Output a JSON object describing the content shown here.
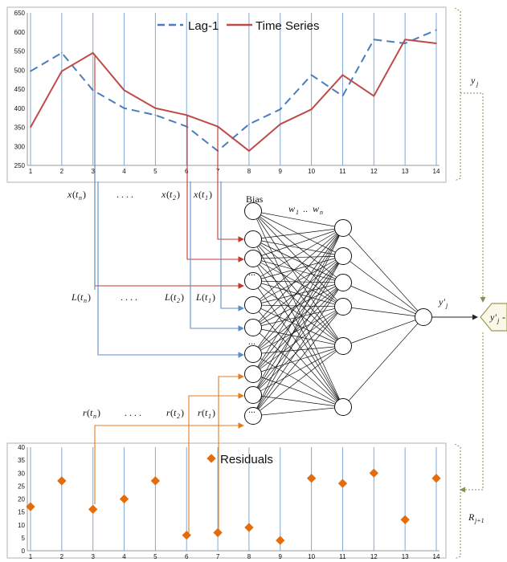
{
  "chart_data": [
    {
      "type": "line",
      "title": "",
      "x": [
        1,
        2,
        3,
        4,
        5,
        6,
        7,
        8,
        9,
        10,
        11,
        12,
        13,
        14
      ],
      "xticks": [
        "1",
        "2",
        "3",
        "4",
        "5",
        "6",
        "7",
        "8",
        "9",
        "10",
        "11",
        "12",
        "13",
        "14"
      ],
      "ylim": [
        250,
        650
      ],
      "yticks": [
        "250",
        "300",
        "350",
        "400",
        "450",
        "500",
        "550",
        "600",
        "650"
      ],
      "grid": "vertical",
      "legend": "top-center",
      "series": [
        {
          "name": "Lag-1",
          "style": "dashed",
          "color": "#4a7ebb",
          "values": [
            497,
            545,
            447,
            400,
            382,
            352,
            288,
            358,
            397,
            487,
            432,
            580,
            570,
            605
          ]
        },
        {
          "name": "Time Series",
          "style": "solid",
          "color": "#be4b48",
          "values": [
            350,
            497,
            545,
            447,
            400,
            382,
            352,
            288,
            358,
            397,
            487,
            432,
            580,
            570
          ]
        }
      ]
    },
    {
      "type": "scatter",
      "title": "",
      "x": [
        1,
        2,
        3,
        4,
        5,
        6,
        7,
        8,
        9,
        10,
        11,
        12,
        13,
        14
      ],
      "xticks": [
        "1",
        "2",
        "3",
        "4",
        "5",
        "6",
        "7",
        "8",
        "9",
        "10",
        "11",
        "12",
        "13",
        "14"
      ],
      "ylim": [
        0,
        40
      ],
      "yticks": [
        "0",
        "5",
        "10",
        "15",
        "20",
        "25",
        "30",
        "35",
        "40"
      ],
      "grid": "vertical",
      "legend": "top-center",
      "series": [
        {
          "name": "Residuals",
          "marker": "diamond",
          "color": "#e46c0a",
          "values": [
            17,
            27,
            16,
            20,
            27,
            6,
            7,
            9,
            4,
            28,
            26,
            30,
            12,
            28
          ]
        }
      ]
    }
  ],
  "labels": {
    "bias": "Bias",
    "weights": "w",
    "weights_sub_1": "1",
    "weights_dots": "..",
    "weights_end": "w",
    "weights_sub_n": "n",
    "dots": ". . . .",
    "ellipsis": "...",
    "x_label": "x",
    "L_label": "L",
    "r_label": "r",
    "t_n": "t",
    "sub_n": "n",
    "sub_2": "2",
    "sub_1": "1",
    "y_j": "y",
    "j": "j",
    "y_prime": "y'",
    "diff_op": "-",
    "R_label": "R",
    "R_sub": "j+1"
  },
  "colors": {
    "red_arrow": "#c0392b",
    "blue_arrow": "#5b8ec9",
    "orange_arrow": "#e47b1f",
    "bracket": "#c9b48a",
    "feedback": "#8c8c5a",
    "diamond_fill": "#fbf8ea",
    "diamond_stroke": "#9b9a52"
  }
}
